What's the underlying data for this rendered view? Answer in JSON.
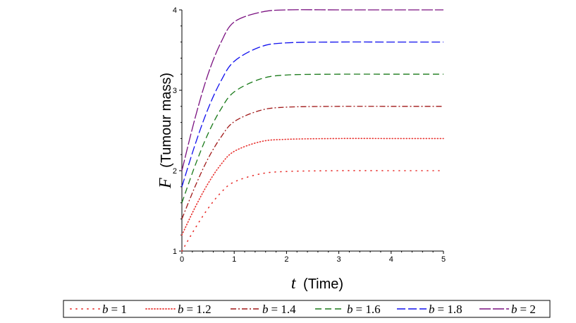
{
  "chart_data": {
    "type": "line",
    "title": "",
    "xlabel": {
      "symbol": "t",
      "text": "(Time)"
    },
    "ylabel": {
      "symbol": "F",
      "text": "(Tumour mass)"
    },
    "xlim": [
      0,
      5
    ],
    "ylim": [
      1,
      4
    ],
    "xticks": [
      "0",
      "1",
      "2",
      "3",
      "4",
      "5"
    ],
    "yticks": [
      "1",
      "2",
      "3",
      "4"
    ],
    "grid": false,
    "legend_position": "bottom",
    "series": [
      {
        "name": "b = 1",
        "symbol": "b",
        "value_label": "= 1",
        "color": "#e8312e",
        "dash": "1,7",
        "x": [
          0,
          0.25,
          0.5,
          0.75,
          1,
          1.5,
          2,
          3,
          4,
          5
        ],
        "y": [
          1.0,
          1.28,
          1.53,
          1.73,
          1.86,
          1.96,
          1.99,
          2.0,
          2.0,
          2.0
        ]
      },
      {
        "name": "b = 1.2",
        "symbol": "b",
        "value_label": "= 1.2",
        "color": "#e8312e",
        "dash": "1,3",
        "x": [
          0,
          0.25,
          0.5,
          0.75,
          1,
          1.5,
          2,
          3,
          4,
          5
        ],
        "y": [
          1.2,
          1.54,
          1.84,
          2.08,
          2.24,
          2.36,
          2.39,
          2.4,
          2.4,
          2.4
        ]
      },
      {
        "name": "b = 1.4",
        "symbol": "b",
        "value_label": "= 1.4",
        "color": "#a01818",
        "dash": "8,3,2,3",
        "x": [
          0,
          0.25,
          0.5,
          0.75,
          1,
          1.5,
          2,
          3,
          4,
          5
        ],
        "y": [
          1.4,
          1.8,
          2.15,
          2.42,
          2.61,
          2.75,
          2.79,
          2.8,
          2.8,
          2.8
        ]
      },
      {
        "name": "b = 1.6",
        "symbol": "b",
        "value_label": "= 1.6",
        "color": "#1a7a1a",
        "dash": "9,5",
        "x": [
          0,
          0.25,
          0.5,
          0.75,
          1,
          1.5,
          2,
          3,
          4,
          5
        ],
        "y": [
          1.6,
          2.06,
          2.46,
          2.77,
          2.98,
          3.14,
          3.19,
          3.2,
          3.2,
          3.2
        ]
      },
      {
        "name": "b = 1.8",
        "symbol": "b",
        "value_label": "= 1.8",
        "color": "#1010ee",
        "dash": "12,4",
        "x": [
          0,
          0.25,
          0.5,
          0.75,
          1,
          1.5,
          2,
          3,
          4,
          5
        ],
        "y": [
          1.8,
          2.32,
          2.77,
          3.12,
          3.36,
          3.54,
          3.59,
          3.6,
          3.6,
          3.6
        ]
      },
      {
        "name": "b = 2",
        "symbol": "b",
        "value_label": "= 2",
        "color": "#7a1080",
        "dash": "16,3",
        "x": [
          0,
          0.25,
          0.5,
          0.75,
          1,
          1.5,
          2,
          3,
          4,
          5
        ],
        "y": [
          2.0,
          2.65,
          3.2,
          3.6,
          3.85,
          3.97,
          4.0,
          4.0,
          4.0,
          4.0
        ]
      }
    ]
  }
}
